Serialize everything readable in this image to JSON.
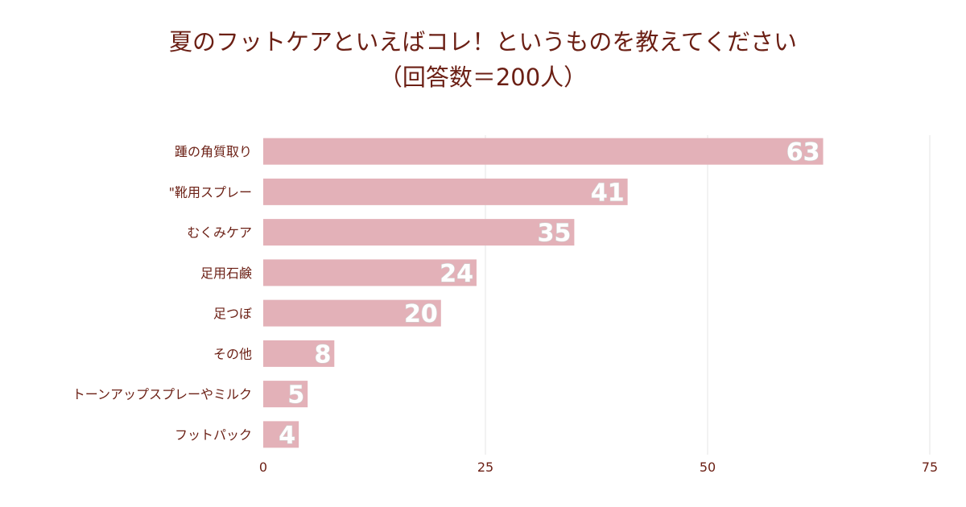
{
  "chart_data": {
    "type": "bar",
    "orientation": "horizontal",
    "title": "夏のフットケアといえばコレ！というものを教えてください",
    "subtitle": "（回答数＝200人）",
    "categories": [
      "踵の角質取り",
      "\"靴用スプレー",
      "むくみケア",
      "足用石鹸",
      "足つぼ",
      "その他",
      "トーンアップスプレーやミルク",
      "フットパック"
    ],
    "values": [
      63,
      41,
      35,
      24,
      20,
      8,
      5,
      4
    ],
    "xlim": [
      0,
      75
    ],
    "xticks": [
      0,
      25,
      50,
      75
    ],
    "xlabel": "",
    "ylabel": "",
    "grid": "vertical",
    "colors": {
      "bar": "#e3b1b8",
      "label": "#6b1f14",
      "tick": "#6b1f14",
      "grid": "#e6e6e6",
      "value": "#ffffff",
      "value_outline": "#cfcfcf"
    }
  }
}
